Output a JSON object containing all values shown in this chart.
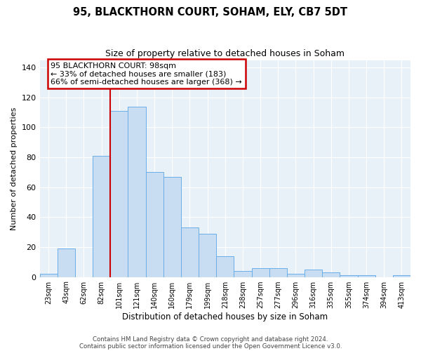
{
  "title1": "95, BLACKTHORN COURT, SOHAM, ELY, CB7 5DT",
  "title2": "Size of property relative to detached houses in Soham",
  "xlabel": "Distribution of detached houses by size in Soham",
  "ylabel": "Number of detached properties",
  "categories": [
    "23sqm",
    "43sqm",
    "62sqm",
    "82sqm",
    "101sqm",
    "121sqm",
    "140sqm",
    "160sqm",
    "179sqm",
    "199sqm",
    "218sqm",
    "238sqm",
    "257sqm",
    "277sqm",
    "296sqm",
    "316sqm",
    "335sqm",
    "355sqm",
    "374sqm",
    "394sqm",
    "413sqm"
  ],
  "values": [
    2,
    19,
    0,
    81,
    111,
    114,
    70,
    67,
    33,
    29,
    14,
    4,
    6,
    6,
    2,
    5,
    3,
    1,
    1,
    0,
    1
  ],
  "bar_color": "#c9ddf2",
  "bar_edge_color": "#6aaee8",
  "vline_x_index": 4,
  "vline_color": "#cc0000",
  "annotation_text": "95 BLACKTHORN COURT: 98sqm\n← 33% of detached houses are smaller (183)\n66% of semi-detached houses are larger (368) →",
  "annotation_box_facecolor": "#ffffff",
  "annotation_box_edgecolor": "#cc0000",
  "ylim": [
    0,
    145
  ],
  "yticks": [
    0,
    20,
    40,
    60,
    80,
    100,
    120,
    140
  ],
  "footnote1": "Contains HM Land Registry data © Crown copyright and database right 2024.",
  "footnote2": "Contains public sector information licensed under the Open Government Licence v3.0.",
  "plot_bg_color": "#e8f0f8",
  "fig_bg_color": "#ffffff",
  "title1_fontsize": 10.5,
  "title2_fontsize": 9,
  "xlabel_fontsize": 8.5,
  "ylabel_fontsize": 8,
  "tick_fontsize": 7,
  "ytick_fontsize": 8,
  "annotation_fontsize": 8,
  "footnote_fontsize": 6.2
}
